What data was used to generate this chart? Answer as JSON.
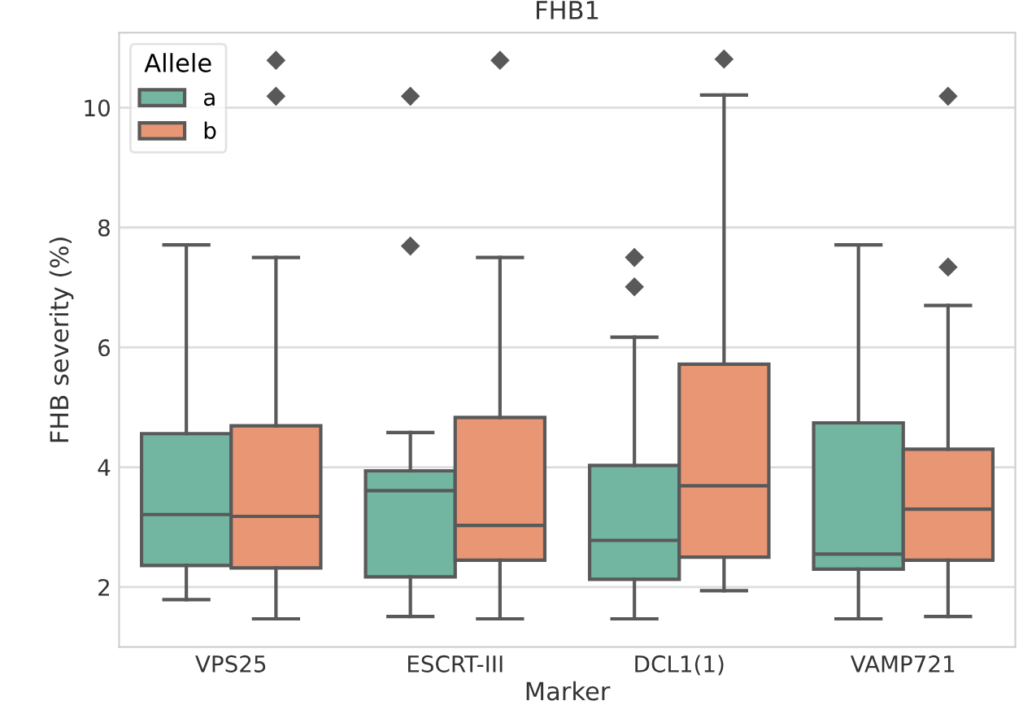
{
  "chart_data": {
    "type": "box",
    "title": "FHB1",
    "xlabel": "Marker",
    "ylabel": "FHB severity (%)",
    "legend_title": "Allele",
    "categories": [
      "VPS25",
      "ESCRT-III",
      "DCL1(1)",
      "VAMP721"
    ],
    "series": [
      {
        "name": "a",
        "color": "#72b6a1",
        "boxes": [
          {
            "low": 1.79,
            "q1": 2.36,
            "median": 3.21,
            "q3": 4.56,
            "high": 7.71
          },
          {
            "low": 1.51,
            "q1": 2.17,
            "median": 3.61,
            "q3": 3.94,
            "high": 4.58,
            "outliers": [
              10.19,
              7.69
            ]
          },
          {
            "low": 1.47,
            "q1": 2.13,
            "median": 2.78,
            "q3": 4.03,
            "high": 6.17,
            "outliers": [
              7.5,
              7.01
            ]
          },
          {
            "low": 1.47,
            "q1": 2.3,
            "median": 2.55,
            "q3": 4.74,
            "high": 7.71
          }
        ]
      },
      {
        "name": "b",
        "color": "#e99675",
        "boxes": [
          {
            "low": 1.47,
            "q1": 2.32,
            "median": 3.18,
            "q3": 4.69,
            "high": 7.5,
            "outliers": [
              10.79,
              10.19
            ]
          },
          {
            "low": 1.47,
            "q1": 2.45,
            "median": 3.03,
            "q3": 4.83,
            "high": 7.5,
            "outliers": [
              10.79
            ]
          },
          {
            "low": 1.94,
            "q1": 2.5,
            "median": 3.69,
            "q3": 5.72,
            "high": 10.21,
            "outliers": [
              10.81
            ]
          },
          {
            "low": 1.51,
            "q1": 2.45,
            "median": 3.3,
            "q3": 4.3,
            "high": 6.7,
            "outliers": [
              10.19,
              7.34
            ]
          }
        ]
      }
    ],
    "ylim": [
      1.0,
      11.25
    ],
    "yticks": [
      2,
      4,
      6,
      8,
      10
    ],
    "grid": "y",
    "legend": "top left",
    "marker": "diamond"
  }
}
